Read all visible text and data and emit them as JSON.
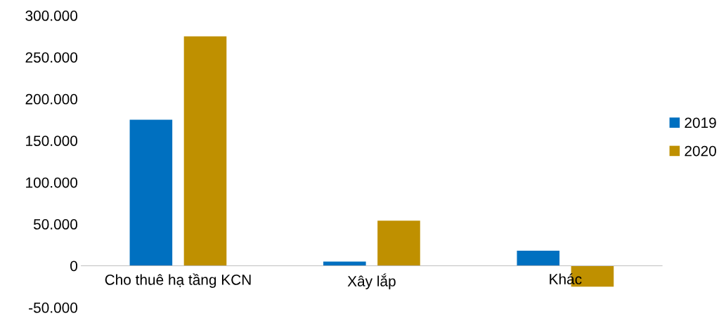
{
  "chart_data": {
    "type": "bar",
    "categories": [
      "Cho thuê hạ tầng KCN",
      "Xây lắp",
      "Khác"
    ],
    "series": [
      {
        "name": "2019",
        "color": "#0070c0",
        "values": [
          175000,
          5000,
          18000
        ]
      },
      {
        "name": "2020",
        "color": "#bf9000",
        "values": [
          275000,
          54000,
          -25000
        ]
      }
    ],
    "ylim": [
      -50000,
      300000
    ],
    "yticks": [
      {
        "value": -50000,
        "label": "-50.000"
      },
      {
        "value": 0,
        "label": "0"
      },
      {
        "value": 50000,
        "label": "50.000"
      },
      {
        "value": 100000,
        "label": "100.000"
      },
      {
        "value": 150000,
        "label": "150.000"
      },
      {
        "value": 200000,
        "label": "200.000"
      },
      {
        "value": 250000,
        "label": "250.000"
      },
      {
        "value": 300000,
        "label": "300.000"
      }
    ],
    "grid": false,
    "legend": "right"
  }
}
